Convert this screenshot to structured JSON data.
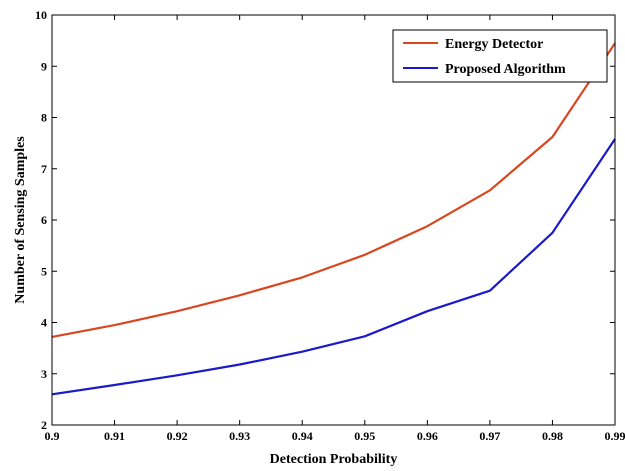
{
  "chart_data": {
    "type": "line",
    "xlabel": "Detection Probability",
    "ylabel": "Number of Sensing Samples",
    "xlim": [
      0.9,
      0.99
    ],
    "ylim": [
      2,
      10
    ],
    "x_ticks": [
      "0.9",
      "0.91",
      "0.92",
      "0.93",
      "0.94",
      "0.95",
      "0.96",
      "0.97",
      "0.98",
      "0.99"
    ],
    "y_ticks": [
      "2",
      "3",
      "4",
      "5",
      "6",
      "7",
      "8",
      "9",
      "10"
    ],
    "x": [
      0.9,
      0.91,
      0.92,
      0.93,
      0.94,
      0.95,
      0.96,
      0.97,
      0.98,
      0.99
    ],
    "series": [
      {
        "name": "Energy Detector",
        "color": "#d9471f",
        "values": [
          3.72,
          3.95,
          4.22,
          4.53,
          4.88,
          5.32,
          5.88,
          6.58,
          7.62,
          9.45
        ]
      },
      {
        "name": "Proposed Algorithm",
        "color": "#1a1acc",
        "values": [
          2.6,
          2.78,
          2.97,
          3.18,
          3.43,
          3.73,
          4.22,
          4.62,
          5.75,
          7.58
        ]
      }
    ],
    "legend_position": "top-right",
    "grid": false
  }
}
